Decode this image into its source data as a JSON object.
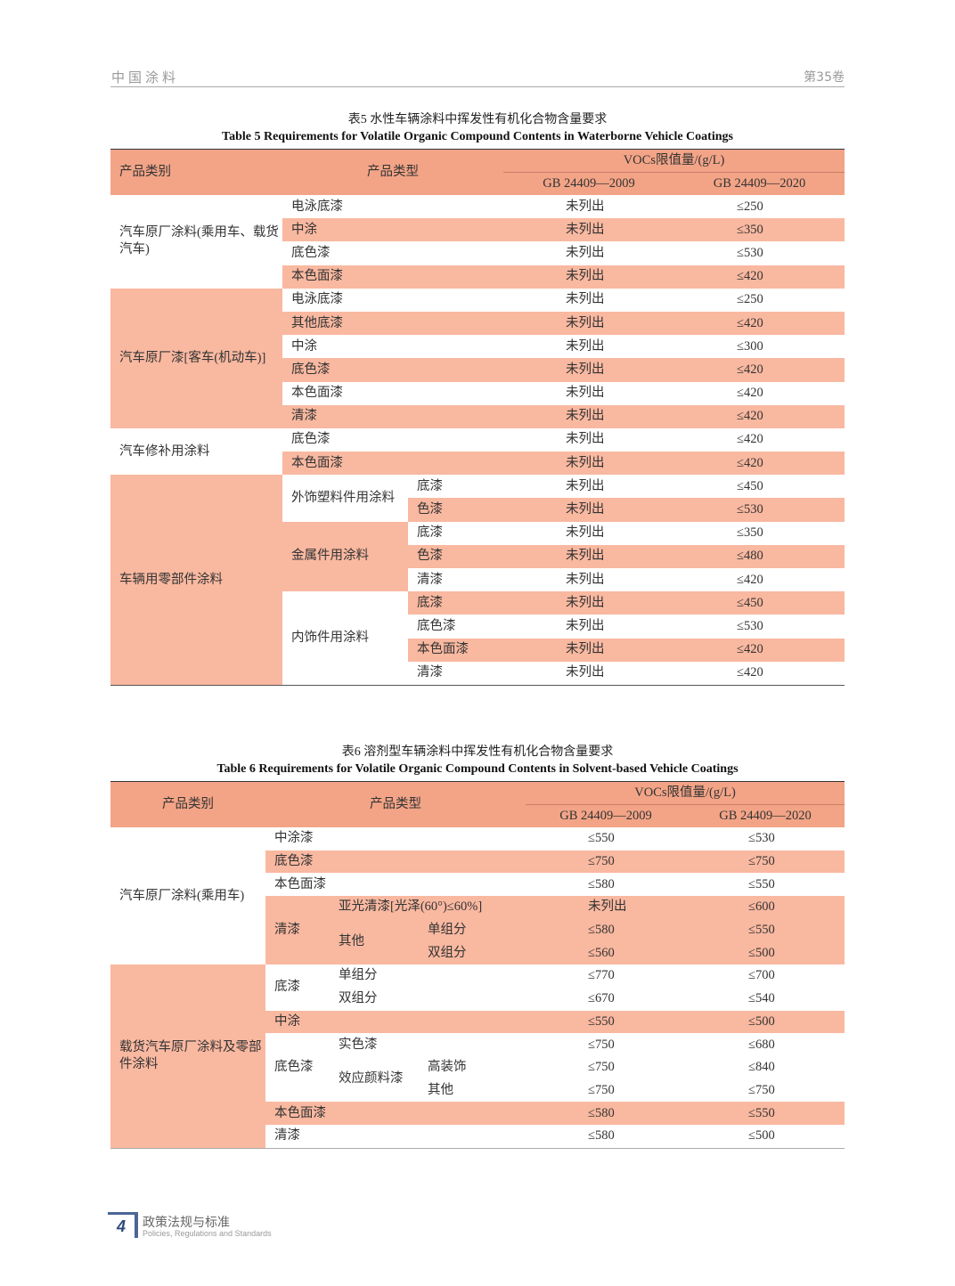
{
  "header": {
    "journal": "中国涂料",
    "volume": "第35卷"
  },
  "table5": {
    "caption_cn": "表5  水性车辆涂料中挥发性有机化合物含量要求",
    "caption_en": "Table 5   Requirements for Volatile Organic Compound Contents in Waterborne Vehicle Coatings",
    "head": {
      "category": "产品类别",
      "type": "产品类型",
      "limit": "VOCs限值量/(g/L)",
      "std2009": "GB 24409—2009",
      "std2020": "GB 24409—2020"
    },
    "cats": [
      "汽车原厂涂料(乘用车、载货汽车)",
      "汽车原厂漆[客车(机动车)]",
      "汽车修补用涂料",
      "车辆用零部件涂料"
    ],
    "subcats": [
      "外饰塑料件用涂料",
      "金属件用涂料",
      "内饰件用涂料"
    ],
    "rows": [
      {
        "type": "电泳底漆",
        "v09": "未列出",
        "v20": "≤250"
      },
      {
        "type": "中涂",
        "v09": "未列出",
        "v20": "≤350"
      },
      {
        "type": "底色漆",
        "v09": "未列出",
        "v20": "≤530"
      },
      {
        "type": "本色面漆",
        "v09": "未列出",
        "v20": "≤420"
      },
      {
        "type": "电泳底漆",
        "v09": "未列出",
        "v20": "≤250"
      },
      {
        "type": "其他底漆",
        "v09": "未列出",
        "v20": "≤420"
      },
      {
        "type": "中涂",
        "v09": "未列出",
        "v20": "≤300"
      },
      {
        "type": "底色漆",
        "v09": "未列出",
        "v20": "≤420"
      },
      {
        "type": "本色面漆",
        "v09": "未列出",
        "v20": "≤420"
      },
      {
        "type": "清漆",
        "v09": "未列出",
        "v20": "≤420"
      },
      {
        "type": "底色漆",
        "v09": "未列出",
        "v20": "≤420"
      },
      {
        "type": "本色面漆",
        "v09": "未列出",
        "v20": "≤420"
      },
      {
        "type": "底漆",
        "v09": "未列出",
        "v20": "≤450"
      },
      {
        "type": "色漆",
        "v09": "未列出",
        "v20": "≤530"
      },
      {
        "type": "底漆",
        "v09": "未列出",
        "v20": "≤350"
      },
      {
        "type": "色漆",
        "v09": "未列出",
        "v20": "≤480"
      },
      {
        "type": "清漆",
        "v09": "未列出",
        "v20": "≤420"
      },
      {
        "type": "底漆",
        "v09": "未列出",
        "v20": "≤450"
      },
      {
        "type": "底色漆",
        "v09": "未列出",
        "v20": "≤530"
      },
      {
        "type": "本色面漆",
        "v09": "未列出",
        "v20": "≤420"
      },
      {
        "type": "清漆",
        "v09": "未列出",
        "v20": "≤420"
      }
    ]
  },
  "table6": {
    "caption_cn": "表6  溶剂型车辆涂料中挥发性有机化合物含量要求",
    "caption_en": "Table 6   Requirements for Volatile Organic Compound Contents in Solvent-based Vehicle Coatings",
    "head": {
      "category": "产品类别",
      "type": "产品类型",
      "limit": "VOCs限值量/(g/L)",
      "std2009": "GB 24409—2009",
      "std2020": "GB 24409—2020"
    },
    "cats": [
      "汽车原厂涂料(乘用车)",
      "载货汽车原厂涂料及零部件涂料"
    ],
    "labels": {
      "zhongtuqi": "中涂漆",
      "dise": "底色漆",
      "bense": "本色面漆",
      "qingqi": "清漆",
      "yaguang": "亚光清漆[光泽(60°)≤60%]",
      "qita": "其他",
      "dan": "单组分",
      "shuang": "双组分",
      "diqi": "底漆",
      "zhongtu": "中涂",
      "shise": "实色漆",
      "xiaoying": "效应颜料漆",
      "gaozhuang": "高装饰"
    },
    "values": [
      [
        "≤550",
        "≤530"
      ],
      [
        "≤750",
        "≤750"
      ],
      [
        "≤580",
        "≤550"
      ],
      [
        "未列出",
        "≤600"
      ],
      [
        "≤580",
        "≤550"
      ],
      [
        "≤560",
        "≤500"
      ],
      [
        "≤770",
        "≤700"
      ],
      [
        "≤670",
        "≤540"
      ],
      [
        "≤550",
        "≤500"
      ],
      [
        "≤750",
        "≤680"
      ],
      [
        "≤750",
        "≤840"
      ],
      [
        "≤750",
        "≤750"
      ],
      [
        "≤580",
        "≤550"
      ],
      [
        "≤580",
        "≤500"
      ]
    ]
  },
  "footer": {
    "page": "4",
    "section_cn": "政策法规与标准",
    "section_en": "Policies, Regulations and Standards"
  },
  "colors": {
    "header_fill": "#f3a487",
    "row_fill": "#f9b8a0",
    "footer_accent": "#4a6696"
  }
}
